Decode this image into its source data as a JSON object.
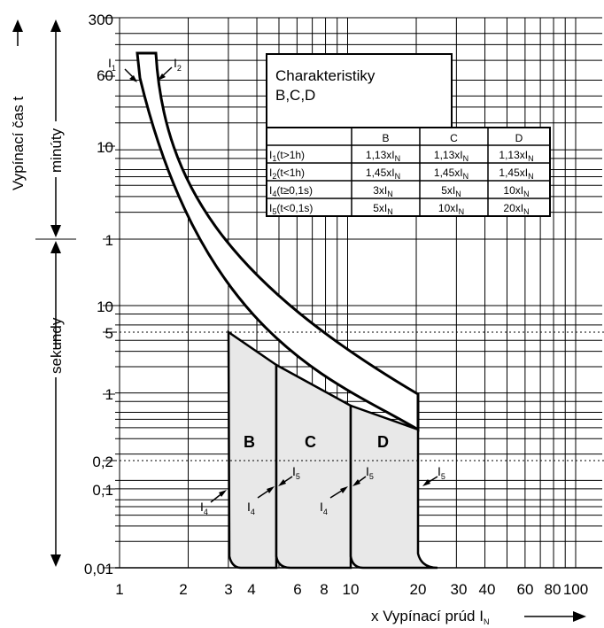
{
  "chart_data": {
    "type": "line",
    "x_scale": "log",
    "y_scale": "log",
    "grid": true,
    "x_ticks": [
      "1",
      "2",
      "3",
      "4",
      "6",
      "8",
      "10",
      "20",
      "30",
      "40",
      "60",
      "80",
      "100"
    ],
    "y_ticks_minutes": [
      "300",
      "60",
      "10",
      "1"
    ],
    "y_ticks_seconds": [
      "10",
      "5",
      "1",
      "0,2",
      "0,1",
      "0,01"
    ],
    "xlabel": "x Vypínací prúd I",
    "xlabel_sub": "N",
    "ylabel": "Vypínací čas t",
    "minutes_label": "minúty",
    "seconds_label": "sekundy",
    "zones": [
      {
        "name": "B",
        "instantaneous_range_xIn": [
          3,
          5
        ]
      },
      {
        "name": "C",
        "instantaneous_range_xIn": [
          5,
          10
        ]
      },
      {
        "name": "D",
        "instantaneous_range_xIn": [
          10,
          20
        ]
      }
    ],
    "thermal_band": {
      "I1_xIn": 1.13,
      "I2_xIn": 1.45
    },
    "curve_labels": {
      "I1": {
        "main": "I",
        "sub": "1"
      },
      "I2": {
        "main": "I",
        "sub": "2"
      },
      "I4": {
        "main": "I",
        "sub": "4"
      },
      "I5": {
        "main": "I",
        "sub": "5"
      }
    },
    "legend_box": {
      "title_line1": "Charakteristiky",
      "title_line2": "B,C,D"
    },
    "table": {
      "columns": [
        "B",
        "C",
        "D"
      ],
      "rows": [
        {
          "label_main": "I",
          "label_sub": "1",
          "label_tail": "(t>1h)",
          "values": [
            "1,13xI",
            "1,13xI",
            "1,13xI"
          ]
        },
        {
          "label_main": "I",
          "label_sub": "2",
          "label_tail": "(t<1h)",
          "values": [
            "1,45xI",
            "1,45xI",
            "1,45xI"
          ]
        },
        {
          "label_main": "I",
          "label_sub": "4",
          "label_tail": "(t≥0,1s)",
          "values": [
            "3xI",
            "5xI",
            "10xI"
          ]
        },
        {
          "label_main": "I",
          "label_sub": "5",
          "label_tail": "(t<0,1s)",
          "values": [
            "5xI",
            "10xI",
            "20xI"
          ]
        }
      ],
      "value_sub": "N"
    }
  }
}
